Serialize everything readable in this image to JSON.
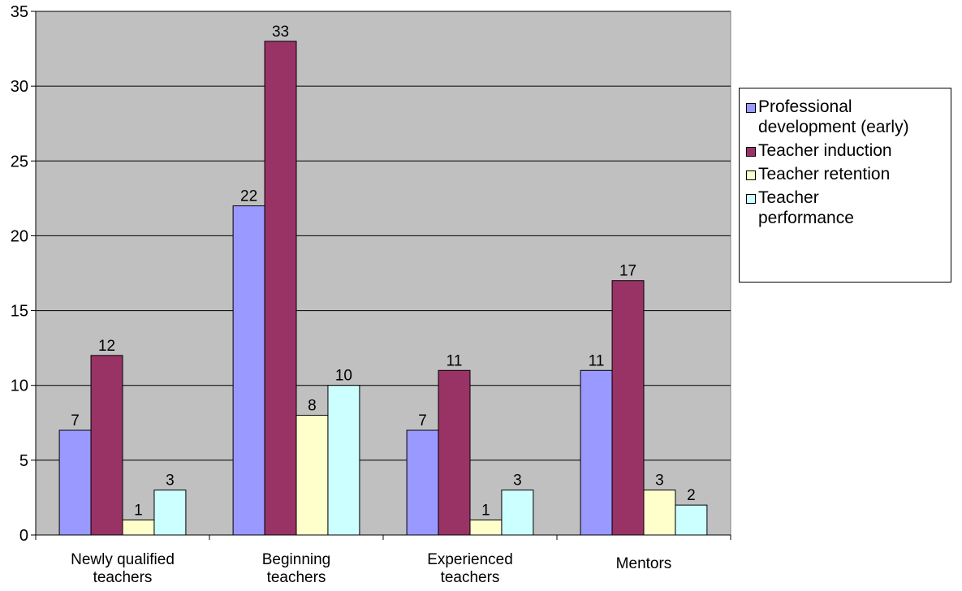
{
  "chart_data": {
    "type": "bar",
    "categories": [
      "Newly qualified teachers",
      "Beginning teachers",
      "Experienced teachers",
      "Mentors"
    ],
    "series": [
      {
        "name": "Professional development (early)",
        "values": [
          7,
          22,
          7,
          11
        ],
        "color": "#9999ff"
      },
      {
        "name": "Teacher induction",
        "values": [
          12,
          33,
          11,
          17
        ],
        "color": "#993366"
      },
      {
        "name": "Teacher retention",
        "values": [
          1,
          8,
          1,
          3
        ],
        "color": "#ffffcc"
      },
      {
        "name": "Teacher performance",
        "values": [
          3,
          10,
          3,
          2
        ],
        "color": "#ccffff"
      }
    ],
    "ylim": [
      0,
      35
    ],
    "yticks": [
      0,
      5,
      10,
      15,
      20,
      25,
      30,
      35
    ],
    "grid": true,
    "data_labels": true,
    "legend_position": "right",
    "plot_background": "#c0c0c0"
  }
}
